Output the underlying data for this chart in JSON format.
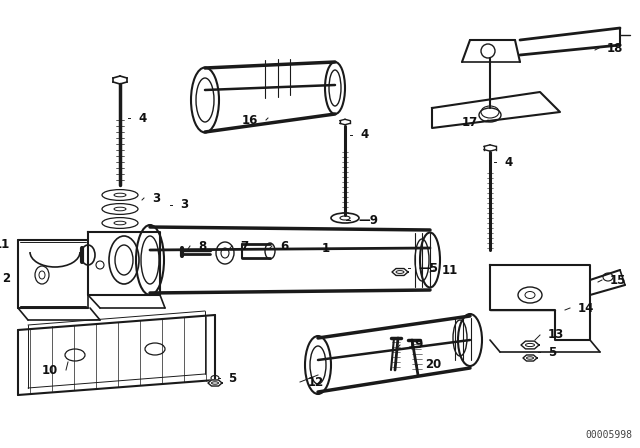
{
  "bg_color": "#ffffff",
  "line_color": "#1a1a1a",
  "watermark": "00005998",
  "fig_width": 6.4,
  "fig_height": 4.48,
  "dpi": 100,
  "text_color": "#111111",
  "font_size": 8.5
}
